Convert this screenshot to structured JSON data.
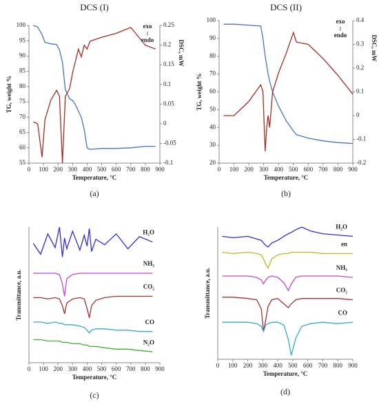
{
  "chart_data": [
    {
      "type": "line",
      "title": "DCS (I)",
      "caption": "(a)",
      "x_label": "Temperature, °C",
      "y_label": "TG, weight %",
      "y2_label": "DSC, mW",
      "annotations": [
        "exo",
        "↕",
        "endo"
      ],
      "x": [
        30,
        60,
        90,
        110,
        150,
        190,
        210,
        230,
        250,
        280,
        300,
        320,
        340,
        360,
        380,
        400,
        420,
        500,
        600,
        700,
        800,
        870
      ],
      "series": [
        {
          "name": "TG",
          "color": "#4472c4",
          "values": [
            100,
            99.5,
            97,
            94.5,
            94,
            93.8,
            92,
            88,
            79,
            76,
            75.5,
            74,
            72,
            70,
            66,
            60,
            59.5,
            59.8,
            59.8,
            60,
            60.5,
            60.5
          ]
        },
        {
          "name": "DSC",
          "color": "#a52a1e",
          "axis": "y2",
          "values": [
            0.005,
            0,
            -0.085,
            0.01,
            0.06,
            0.085,
            0.07,
            -0.1,
            0.07,
            0.09,
            0.13,
            0.16,
            0.19,
            0.17,
            0.2,
            0.19,
            0.21,
            0.22,
            0.23,
            0.245,
            0.2,
            0.19
          ]
        }
      ],
      "xlim": [
        0,
        900
      ],
      "xticks": [
        0,
        100,
        200,
        300,
        400,
        500,
        600,
        700,
        800,
        900
      ],
      "ylim": [
        55,
        100
      ],
      "yticks": [
        55,
        60,
        65,
        70,
        75,
        80,
        85,
        90,
        95,
        100
      ],
      "y2lim": [
        -0.1,
        0.25
      ],
      "y2ticks": [
        -0.1,
        -0.05,
        0,
        0.05,
        0.1,
        0.15,
        0.2,
        0.25
      ]
    },
    {
      "type": "line",
      "title": "DCS (II)",
      "caption": "(b)",
      "x_label": "Temperature, °C",
      "y_label": "TG, weight %",
      "y2_label": "DSC, mW",
      "annotations": [
        "exo",
        "↕",
        "endo"
      ],
      "x": [
        30,
        100,
        200,
        280,
        295,
        310,
        320,
        330,
        340,
        360,
        400,
        450,
        500,
        520,
        600,
        700,
        800,
        900
      ],
      "series": [
        {
          "name": "TG",
          "color": "#4472c4",
          "values": [
            98,
            98,
            97.5,
            97,
            90,
            80,
            75,
            70,
            66,
            60,
            52,
            44,
            38,
            36,
            34,
            32.5,
            31.5,
            31
          ]
        },
        {
          "name": "DSC",
          "color": "#a52a1e",
          "axis": "y2",
          "values": [
            0,
            0,
            0.06,
            0.13,
            0.1,
            -0.15,
            -0.05,
            0,
            -0.05,
            0.1,
            0.18,
            0.26,
            0.35,
            0.31,
            0.3,
            0.24,
            0.17,
            0.09
          ]
        }
      ],
      "xlim": [
        0,
        900
      ],
      "xticks": [
        0,
        100,
        200,
        300,
        400,
        500,
        600,
        700,
        800,
        900
      ],
      "ylim": [
        20,
        100
      ],
      "yticks": [
        20,
        30,
        40,
        50,
        60,
        70,
        80,
        90,
        100
      ],
      "y2lim": [
        -0.2,
        0.4
      ],
      "y2ticks": [
        -0.2,
        -0.1,
        0,
        0.1,
        0.2,
        0.3,
        0.4
      ]
    },
    {
      "type": "line",
      "caption": "(c)",
      "x_label": "Temperature, °C",
      "y_label": "Transmittance, a.u.",
      "x": [
        30,
        80,
        130,
        180,
        210,
        230,
        245,
        260,
        300,
        350,
        380,
        400,
        415,
        430,
        460,
        520,
        600,
        680,
        760,
        850
      ],
      "series": [
        {
          "name": "H₂O",
          "color": "#2b2be0",
          "values": [
            88,
            80,
            95,
            85,
            100,
            78,
            92,
            84,
            97,
            83,
            94,
            86,
            99,
            82,
            91,
            87,
            95,
            84,
            93,
            89
          ]
        },
        {
          "name": "NH₃",
          "color": "#cc44cc",
          "values": [
            66,
            66,
            66,
            66,
            65,
            58,
            49,
            62,
            65,
            66,
            66,
            66,
            66,
            66,
            66,
            66,
            66,
            66,
            66,
            66
          ]
        },
        {
          "name": "CO₂",
          "color": "#a0322a",
          "values": [
            48,
            48,
            47,
            48,
            47,
            42,
            36,
            44,
            47,
            48,
            47,
            40,
            33,
            42,
            46,
            48,
            49,
            49,
            49,
            49
          ]
        },
        {
          "name": "CO",
          "color": "#33aacc",
          "values": [
            30,
            30,
            29,
            30,
            29,
            29,
            28,
            28,
            28,
            27,
            26,
            24,
            22,
            24,
            25,
            25,
            24,
            24,
            23,
            23
          ]
        },
        {
          "name": "N₂O",
          "color": "#44aa33",
          "values": [
            17,
            17,
            16,
            16,
            16,
            15,
            15,
            15,
            14,
            14,
            13,
            13,
            12,
            12,
            12,
            11,
            10,
            10,
            9,
            8
          ]
        }
      ],
      "xlim": [
        0,
        900
      ],
      "xticks": [
        0,
        100,
        200,
        300,
        400,
        500,
        600,
        700,
        800,
        900
      ],
      "ylim": [
        0,
        100
      ]
    },
    {
      "type": "line",
      "caption": "(d)",
      "x_label": "Temperature, °C",
      "y_label": "Transmittance, a.u.",
      "x": [
        30,
        100,
        200,
        260,
        290,
        305,
        320,
        335,
        360,
        400,
        440,
        470,
        490,
        520,
        560,
        620,
        700,
        800,
        900
      ],
      "series": [
        {
          "name": "H₂O",
          "color": "#2b2be0",
          "values": [
            93,
            92,
            93,
            91,
            90,
            88,
            86,
            85,
            88,
            90,
            93,
            95,
            96,
            98,
            100,
            97,
            95,
            94,
            93
          ]
        },
        {
          "name": "en",
          "color": "#b8b820",
          "values": [
            81,
            80,
            81,
            80,
            79,
            76,
            72,
            69,
            76,
            79,
            80,
            80,
            81,
            81,
            81,
            81,
            80,
            80,
            80
          ]
        },
        {
          "name": "NH₃",
          "color": "#cc44cc",
          "values": [
            63,
            63,
            63,
            62,
            60,
            57,
            60,
            62,
            63,
            62,
            58,
            52,
            57,
            62,
            63,
            63,
            63,
            63,
            62
          ]
        },
        {
          "name": "CO₂",
          "color": "#a0322a",
          "values": [
            47,
            47,
            46,
            45,
            38,
            21,
            30,
            40,
            45,
            46,
            42,
            39,
            42,
            45,
            46,
            46,
            46,
            46,
            45
          ]
        },
        {
          "name": "CO",
          "color": "#33aacc",
          "values": [
            28,
            28,
            28,
            27,
            25,
            21,
            26,
            27,
            28,
            28,
            26,
            15,
            3,
            16,
            25,
            27,
            28,
            27,
            28
          ]
        }
      ],
      "xlim": [
        0,
        900
      ],
      "xticks": [
        0,
        100,
        200,
        300,
        400,
        500,
        600,
        700,
        800,
        900
      ],
      "ylim": [
        0,
        100
      ]
    }
  ]
}
